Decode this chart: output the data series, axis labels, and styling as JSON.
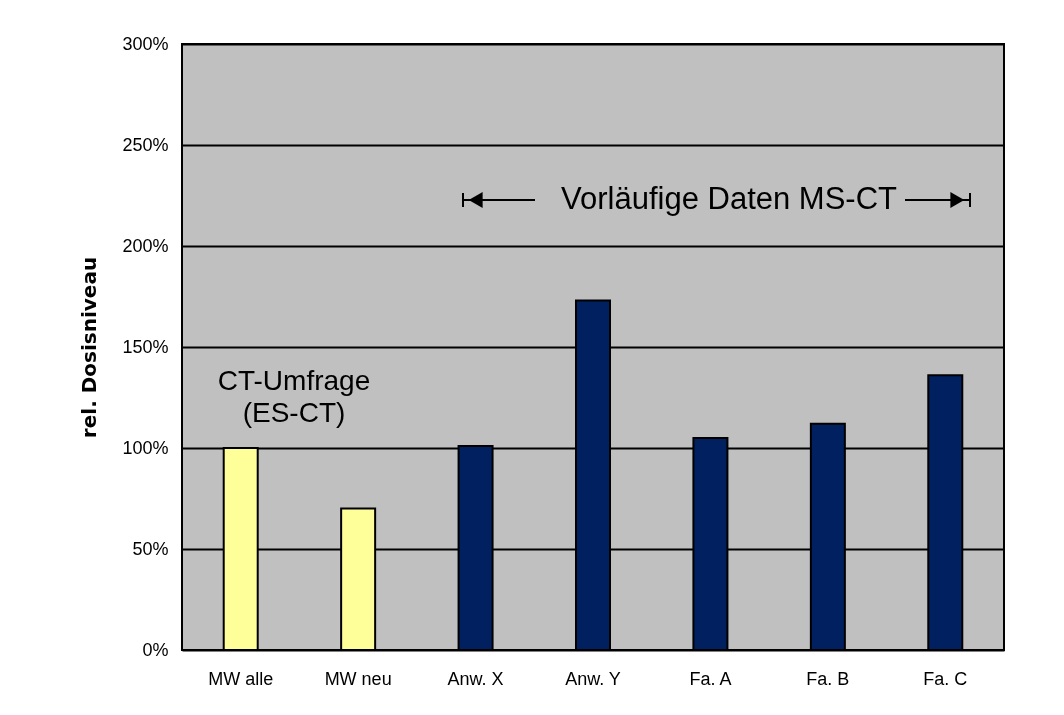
{
  "chart_data": {
    "type": "bar",
    "ylabel": "rel. Dosisniveau",
    "categories": [
      "MW alle",
      "MW neu",
      "Anw. X",
      "Anw. Y",
      "Fa. A",
      "Fa. B",
      "Fa. C"
    ],
    "values": [
      100,
      70,
      101,
      173,
      105,
      112,
      136
    ],
    "colors": [
      "#ffff99",
      "#ffff99",
      "#002060",
      "#002060",
      "#002060",
      "#002060",
      "#002060"
    ],
    "ylim": [
      0,
      300
    ],
    "yticks": [
      {
        "value": 0,
        "label": "0%"
      },
      {
        "value": 50,
        "label": "50%"
      },
      {
        "value": 100,
        "label": "100%"
      },
      {
        "value": 150,
        "label": "150%"
      },
      {
        "value": 200,
        "label": "200%"
      },
      {
        "value": 250,
        "label": "250%"
      },
      {
        "value": 300,
        "label": "300%"
      }
    ],
    "grid": "y",
    "annotations": [
      "CT-Umfrage\n(ES-CT)",
      "Vorläufige Daten MS-CT"
    ]
  }
}
